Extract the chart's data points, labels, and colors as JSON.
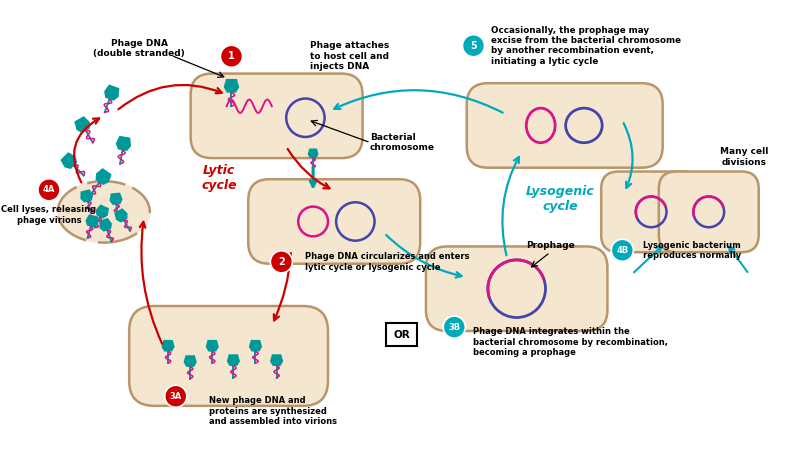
{
  "bg_color": "#ffffff",
  "cell_fill": "#f5e6d0",
  "cell_edge": "#b8956a",
  "chr_blue": "#4444aa",
  "chr_pink": "#dd1188",
  "phage_teal": "#009999",
  "arrow_red": "#cc0000",
  "arrow_cyan": "#00aabb",
  "texts": {
    "phage_dna_label": "Phage DNA\n(double stranded)",
    "step1_label": "Phage attaches\nto host cell and\ninjects DNA",
    "bact_chr_label": "Bacterial\nchromosome",
    "step2_label": "Phage DNA circularizes and enters\nlytic cycle or lysogenic cycle",
    "lytic_label": "Lytic\ncycle",
    "lysogenic_label": "Lysogenic\ncycle",
    "step3a_label": "New phage DNA and\nproteins are synthesized\nand assembled into virions",
    "step3b_label": "Phage DNA integrates within the\nbacterial chromosome by recombination,\nbecoming a prophage",
    "step4a_label": "Cell lyses, releasing\nphage virions",
    "step4b_label": "Lysogenic bacterium\nreproduces normally",
    "step5_label": "Occasionally, the prophage may\nexcise from the bacterial chromosome\nby another recombination event,\ninitiating a lytic cycle",
    "prophage_label": "Prophage",
    "many_cell_label": "Many cell\ndivisions",
    "or_label": "OR"
  }
}
